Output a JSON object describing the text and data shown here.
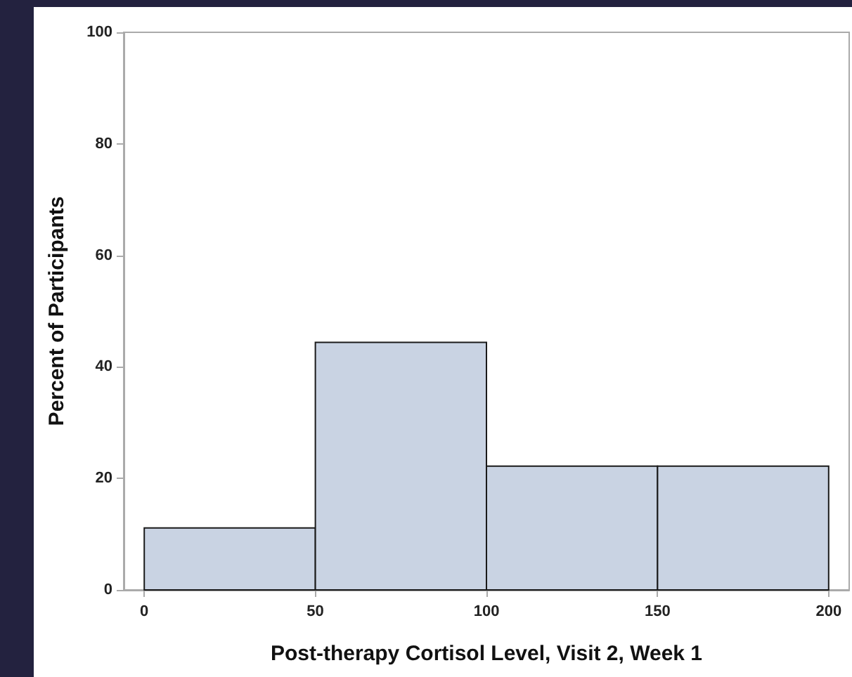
{
  "chart_data": {
    "type": "histogram",
    "xlabel": "Post-therapy Cortisol Level, Visit 2, Week 1",
    "ylabel": "Percent of Participants",
    "bins": [
      0,
      50,
      100,
      150,
      200
    ],
    "values": [
      11.1,
      44.4,
      22.2,
      22.2
    ],
    "color": "#c9d3e3",
    "xlim": [
      -6,
      206
    ],
    "xticks": [
      0,
      50,
      100,
      150,
      200
    ],
    "ylim": [
      0,
      100
    ],
    "yticks": [
      0,
      20,
      40,
      60,
      80,
      100
    ],
    "grid": false
  }
}
